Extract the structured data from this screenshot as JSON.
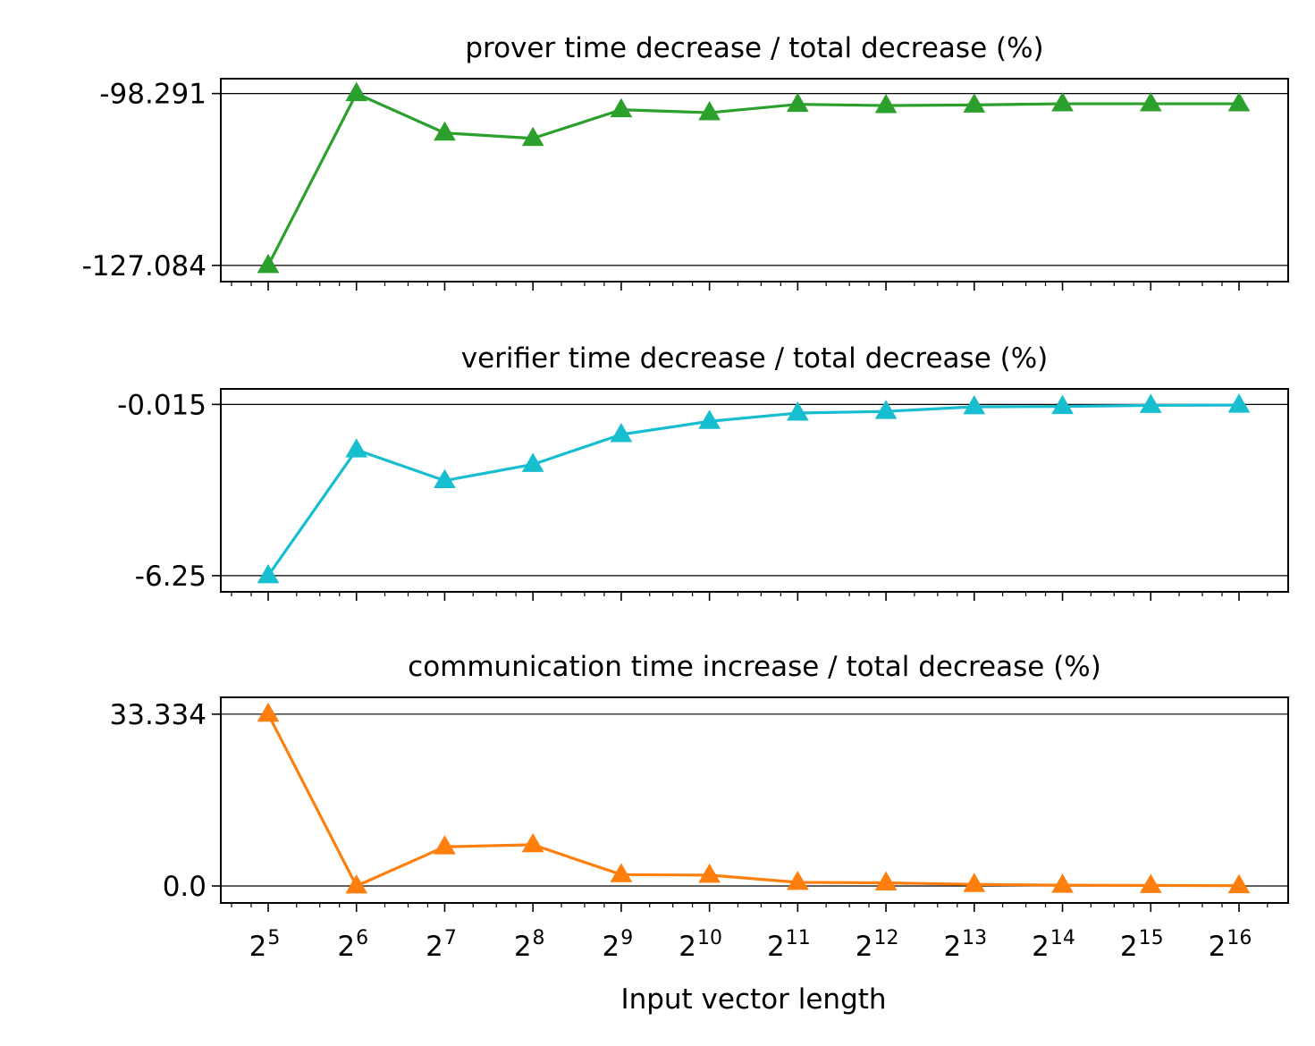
{
  "xlabel": "Input vector length",
  "chart_data": [
    {
      "type": "line",
      "title": "prover time decrease / total decrease (%)",
      "xlabel": "Input vector length",
      "ylabel": "",
      "x_scale": "log2",
      "x": [
        32,
        64,
        128,
        256,
        512,
        1024,
        2048,
        4096,
        8192,
        16384,
        32768,
        65536
      ],
      "x_tick_labels": [
        {
          "base": "2",
          "exp": "5"
        },
        {
          "base": "2",
          "exp": "6"
        },
        {
          "base": "2",
          "exp": "7"
        },
        {
          "base": "2",
          "exp": "8"
        },
        {
          "base": "2",
          "exp": "9"
        },
        {
          "base": "2",
          "exp": "10"
        },
        {
          "base": "2",
          "exp": "11"
        },
        {
          "base": "2",
          "exp": "12"
        },
        {
          "base": "2",
          "exp": "13"
        },
        {
          "base": "2",
          "exp": "14"
        },
        {
          "base": "2",
          "exp": "15"
        },
        {
          "base": "2",
          "exp": "16"
        }
      ],
      "yticks": [
        -98.291,
        -127.084
      ],
      "ytick_labels": [
        "-98.291",
        "-127.084"
      ],
      "ylim": [
        -129.8,
        -95.8
      ],
      "grid": "horizontal lines at y ticks",
      "marker": "triangle-up",
      "color": "#2ca02c",
      "series": [
        {
          "values": [
            -127.084,
            -98.291,
            -104.9,
            -105.8,
            -101.0,
            -101.5,
            -100.1,
            -100.3,
            -100.2,
            -100.0,
            -100.0,
            -100.0
          ]
        }
      ]
    },
    {
      "type": "line",
      "title": "verifier time decrease / total decrease (%)",
      "xlabel": "Input vector length",
      "ylabel": "",
      "x_scale": "log2",
      "x": [
        32,
        64,
        128,
        256,
        512,
        1024,
        2048,
        4096,
        8192,
        16384,
        32768,
        65536
      ],
      "yticks": [
        -0.015,
        -6.25
      ],
      "ytick_labels": [
        "-0.015",
        "-6.25"
      ],
      "ylim": [
        -6.84,
        0.55
      ],
      "grid": "horizontal lines at y ticks",
      "marker": "triangle-up",
      "color": "#17becf",
      "series": [
        {
          "values": [
            -6.25,
            -1.67,
            -2.79,
            -2.2,
            -1.11,
            -0.63,
            -0.33,
            -0.27,
            -0.1,
            -0.09,
            -0.05,
            -0.04
          ]
        }
      ]
    },
    {
      "type": "line",
      "title": "communication time increase / total decrease (%)",
      "xlabel": "Input vector length",
      "ylabel": "",
      "x_scale": "log2",
      "x": [
        32,
        64,
        128,
        256,
        512,
        1024,
        2048,
        4096,
        8192,
        16384,
        32768,
        65536
      ],
      "yticks": [
        33.334,
        0.0
      ],
      "ytick_labels": [
        "33.334",
        "0.0"
      ],
      "ylim": [
        -3.3,
        36.6
      ],
      "grid": "horizontal lines at y ticks",
      "marker": "triangle-up",
      "color": "#ff7f0e",
      "series": [
        {
          "values": [
            33.334,
            0.0,
            7.6,
            8.0,
            2.2,
            2.1,
            0.7,
            0.6,
            0.3,
            0.15,
            0.1,
            0.05
          ]
        }
      ]
    }
  ]
}
